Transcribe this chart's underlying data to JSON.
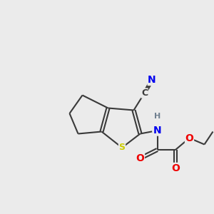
{
  "background_color": "#ebebeb",
  "atom_colors": {
    "C": "#3a3a3a",
    "N": "#0000ee",
    "O": "#ee0000",
    "S": "#cccc00",
    "H": "#708090"
  },
  "bond_color": "#3a3a3a",
  "bond_width": 1.5,
  "figsize": [
    3.0,
    3.0
  ],
  "dpi": 100
}
